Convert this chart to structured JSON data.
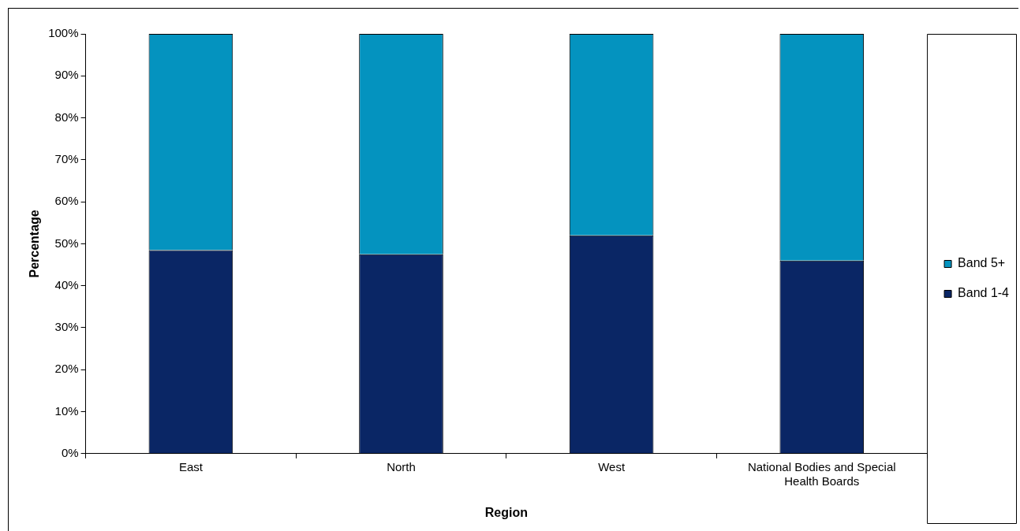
{
  "chart_data": {
    "type": "bar",
    "stacked": true,
    "xlabel": "Region",
    "ylabel": "Percentage",
    "categories": [
      "East",
      "North",
      "West",
      "National Bodies and Special Health Boards"
    ],
    "series": [
      {
        "name": "Band 1-4",
        "color": "#0a2665",
        "values": [
          48.5,
          47.5,
          52,
          46
        ]
      },
      {
        "name": "Band 5+",
        "color": "#0493bf",
        "values": [
          51.5,
          52.5,
          48,
          54
        ]
      }
    ],
    "ylim": [
      0,
      100
    ],
    "yticks": [
      {
        "value": 0,
        "label": "0%"
      },
      {
        "value": 10,
        "label": "10%"
      },
      {
        "value": 20,
        "label": "20%"
      },
      {
        "value": 30,
        "label": "30%"
      },
      {
        "value": 40,
        "label": "40%"
      },
      {
        "value": 50,
        "label": "50%"
      },
      {
        "value": 60,
        "label": "60%"
      },
      {
        "value": 70,
        "label": "70%"
      },
      {
        "value": 80,
        "label": "80%"
      },
      {
        "value": 90,
        "label": "90%"
      },
      {
        "value": 100,
        "label": "100%"
      }
    ],
    "grid": false,
    "legend": "right"
  }
}
